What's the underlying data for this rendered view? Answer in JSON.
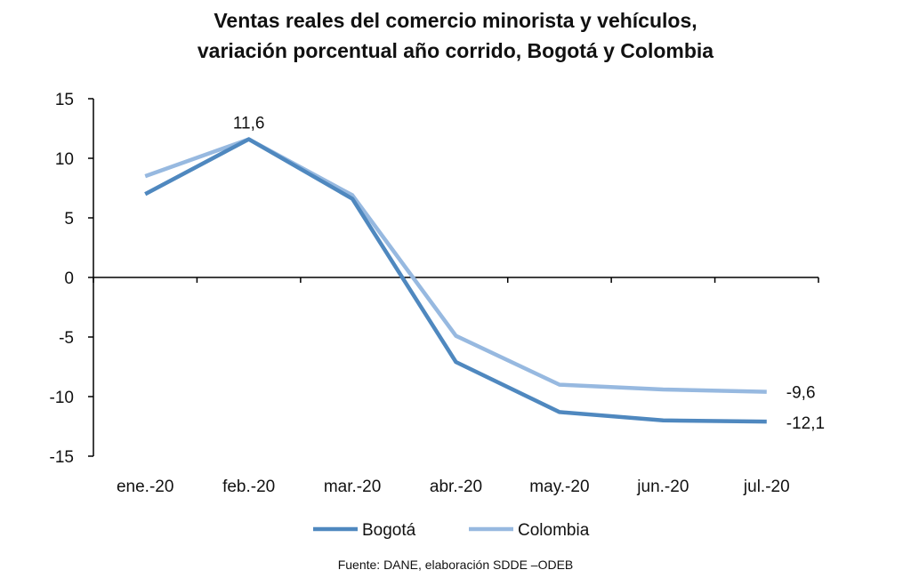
{
  "chart_data": {
    "type": "line",
    "title_line1": "Ventas reales del comercio minorista y vehículos,",
    "title_line2": "variación porcentual año corrido, Bogotá y Colombia",
    "categories": [
      "ene.-20",
      "feb.-20",
      "mar.-20",
      "abr.-20",
      "may.-20",
      "jun.-20",
      "jul.-20"
    ],
    "yticks": [
      "15",
      "10",
      "5",
      "0",
      "-5",
      "-10",
      "-15"
    ],
    "ylim": [
      -15,
      15
    ],
    "series": [
      {
        "name": "Bogotá",
        "color": "#4f88bf",
        "values": [
          7.0,
          11.6,
          6.6,
          -7.1,
          -11.3,
          -12.0,
          -12.1
        ]
      },
      {
        "name": "Colombia",
        "color": "#97b9e0",
        "values": [
          8.5,
          11.6,
          6.9,
          -4.9,
          -9.0,
          -9.4,
          -9.6
        ]
      }
    ],
    "data_labels": {
      "feb": "11,6",
      "colombia_jul": "-9,6",
      "bogota_jul": "-12,1"
    },
    "legend": "bottom",
    "source": "Fuente: DANE, elaboración SDDE –ODEB"
  }
}
